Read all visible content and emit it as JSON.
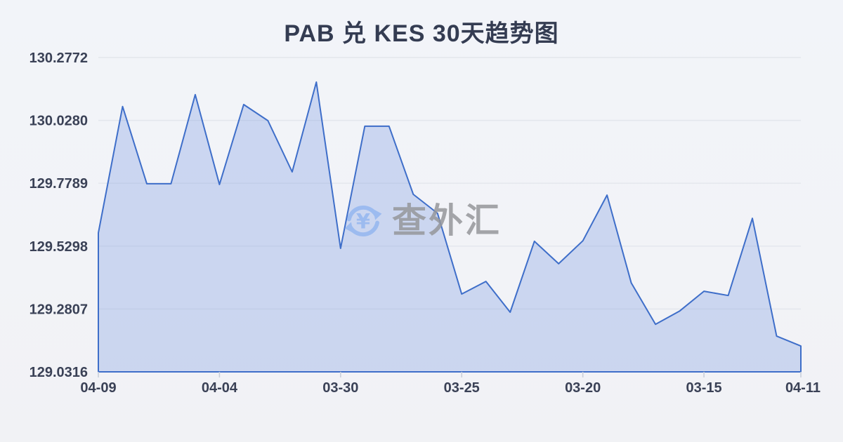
{
  "page": {
    "title": "PAB 兑 KES 30天趋势图"
  },
  "watermark": {
    "text": "查外汇",
    "currency_symbol": "¥"
  },
  "colors": {
    "background": "#f2f3f7",
    "title_text": "#343c52",
    "axis_text": "#3a4156",
    "line": "#3e6ec9",
    "area_fill": "rgba(104,140,222,0.28)",
    "gridline": "#e3e6ec",
    "tick": "#c9cfda",
    "watermark_text": "#96979b",
    "watermark_icon": "#8db2ef"
  },
  "chart_data": {
    "type": "area",
    "title": "PAB 兑 KES 30天趋势图",
    "xlabel": "",
    "ylabel": "",
    "legend": "none",
    "grid": "horizontal-only",
    "ylim": [
      129.0316,
      130.2772
    ],
    "y_tick_values": [
      130.2772,
      130.028,
      129.7789,
      129.5298,
      129.2807,
      129.0316
    ],
    "x_tick_labels": [
      {
        "index": 0,
        "label": "04-09"
      },
      {
        "index": 5,
        "label": "04-04"
      },
      {
        "index": 10,
        "label": "03-30"
      },
      {
        "index": 15,
        "label": "03-25"
      },
      {
        "index": 20,
        "label": "03-20"
      },
      {
        "index": 25,
        "label": "03-15"
      },
      {
        "index": 29,
        "label": "04-11"
      }
    ],
    "values": [
      129.582,
      130.083,
      129.777,
      129.777,
      130.13,
      129.774,
      130.091,
      130.027,
      129.824,
      130.18,
      129.521,
      130.005,
      130.005,
      129.735,
      129.66,
      129.34,
      129.39,
      129.268,
      129.549,
      129.46,
      129.551,
      129.732,
      129.384,
      129.22,
      129.273,
      129.351,
      129.334,
      129.64,
      129.173,
      129.134
    ]
  }
}
